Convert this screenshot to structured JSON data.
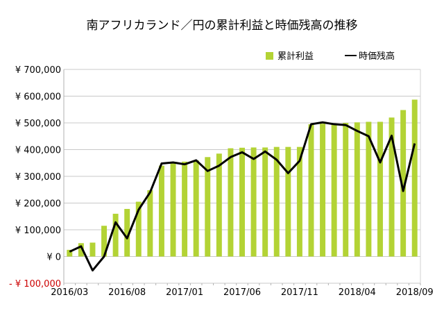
{
  "chart_data": {
    "type": "bar",
    "title": "南アフリカランド／円の累計利益と時価残高の推移",
    "legend_position": "top-right",
    "grid": "horizontal",
    "categories": [
      "2016/03",
      "2016/04",
      "2016/05",
      "2016/06",
      "2016/07",
      "2016/08",
      "2016/09",
      "2016/10",
      "2016/11",
      "2016/12",
      "2017/01",
      "2017/02",
      "2017/03",
      "2017/04",
      "2017/05",
      "2017/06",
      "2017/07",
      "2017/08",
      "2017/09",
      "2017/10",
      "2017/11",
      "2017/12",
      "2018/01",
      "2018/02",
      "2018/03",
      "2018/04",
      "2018/05",
      "2018/06",
      "2018/07",
      "2018/08",
      "2018/09"
    ],
    "x_tick_labels": [
      "2016/03",
      "2016/08",
      "2017/01",
      "2017/06",
      "2017/11",
      "2018/04",
      "2018/09"
    ],
    "x_tick_indices": [
      0,
      5,
      10,
      15,
      20,
      25,
      30
    ],
    "ylim": [
      -100000,
      700000
    ],
    "y_ticks": [
      700000,
      600000,
      500000,
      400000,
      300000,
      200000,
      100000,
      0,
      -100000
    ],
    "y_tick_labels": [
      "¥ 700,000",
      "¥ 600,000",
      "¥ 500,000",
      "¥ 400,000",
      "¥ 300,000",
      "¥ 200,000",
      "¥ 100,000",
      "¥ 0",
      "- ¥ 100,000"
    ],
    "negative_tick_color": "#cc0000",
    "series": [
      {
        "name": "累計利益",
        "type": "bar",
        "color": "#b3d335",
        "values": [
          25000,
          50000,
          52000,
          115000,
          160000,
          178000,
          205000,
          248000,
          340000,
          350000,
          355000,
          360000,
          372000,
          385000,
          405000,
          407000,
          408000,
          408000,
          410000,
          410000,
          410000,
          495000,
          497000,
          497000,
          500000,
          502000,
          504000,
          504000,
          520000,
          548000,
          587000
        ]
      },
      {
        "name": "時価残高",
        "type": "line",
        "color": "#000000",
        "values": [
          18000,
          38000,
          -52000,
          0,
          128000,
          68000,
          175000,
          240000,
          348000,
          352000,
          345000,
          360000,
          320000,
          340000,
          372000,
          390000,
          365000,
          393000,
          362000,
          312000,
          358000,
          495000,
          502000,
          495000,
          492000,
          470000,
          450000,
          352000,
          452000,
          245000,
          423000
        ]
      }
    ]
  }
}
